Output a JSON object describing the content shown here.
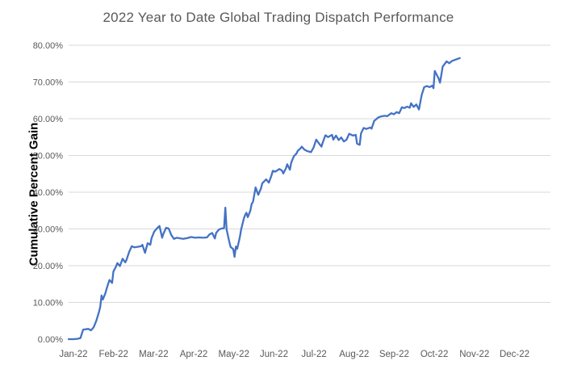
{
  "chart": {
    "title": "2022 Year to Date Global Trading Dispatch Performance",
    "y_axis_title": "Cumulative Percent Gain"
  },
  "chart_data": {
    "type": "line",
    "title": "2022 Year to Date Global Trading Dispatch Performance",
    "xlabel": "",
    "ylabel": "Cumulative Percent Gain",
    "x_unit": "day_of_year_2022",
    "x_tick_labels": [
      "Jan-22",
      "Feb-22",
      "Mar-22",
      "Apr-22",
      "May-22",
      "Jun-22",
      "Jul-22",
      "Aug-22",
      "Sep-22",
      "Oct-22",
      "Nov-22",
      "Dec-22"
    ],
    "y_ticks": [
      0,
      10,
      20,
      30,
      40,
      50,
      60,
      70,
      80
    ],
    "y_tick_labels": [
      "0.00%",
      "10.00%",
      "20.00%",
      "30.00%",
      "40.00%",
      "50.00%",
      "60.00%",
      "70.00%",
      "80.00%"
    ],
    "ylim": [
      0,
      80
    ],
    "grid": true,
    "legend": "none",
    "grid_color": "#D9D9D9",
    "line_color": "#4472C4",
    "series": [
      {
        "name": "Cumulative Percent Gain",
        "points": [
          [
            1,
            0
          ],
          [
            5,
            0
          ],
          [
            8,
            0.1
          ],
          [
            10,
            0.3
          ],
          [
            12,
            2.6
          ],
          [
            14,
            2.7
          ],
          [
            16,
            2.8
          ],
          [
            18,
            2.4
          ],
          [
            20,
            3.2
          ],
          [
            22,
            5.0
          ],
          [
            24,
            7.3
          ],
          [
            25,
            8.8
          ],
          [
            26,
            11.9
          ],
          [
            27,
            10.8
          ],
          [
            29,
            12.6
          ],
          [
            30,
            13.9
          ],
          [
            32,
            16.1
          ],
          [
            34,
            15.3
          ],
          [
            35,
            18.4
          ],
          [
            37,
            19.8
          ],
          [
            38,
            20.7
          ],
          [
            40,
            19.9
          ],
          [
            42,
            21.9
          ],
          [
            44,
            20.9
          ],
          [
            45,
            21.6
          ],
          [
            47,
            23.8
          ],
          [
            49,
            25.3
          ],
          [
            51,
            25.0
          ],
          [
            53,
            25.1
          ],
          [
            56,
            25.3
          ],
          [
            57,
            25.7
          ],
          [
            59,
            23.5
          ],
          [
            61,
            26.1
          ],
          [
            63,
            25.7
          ],
          [
            64,
            27.5
          ],
          [
            66,
            29.3
          ],
          [
            68,
            30.1
          ],
          [
            70,
            30.8
          ],
          [
            72,
            27.6
          ],
          [
            73,
            28.7
          ],
          [
            75,
            30.3
          ],
          [
            77,
            30.1
          ],
          [
            79,
            28.3
          ],
          [
            81,
            27.3
          ],
          [
            83,
            27.6
          ],
          [
            86,
            27.4
          ],
          [
            88,
            27.3
          ],
          [
            91,
            27.5
          ],
          [
            94,
            27.8
          ],
          [
            97,
            27.6
          ],
          [
            100,
            27.7
          ],
          [
            103,
            27.6
          ],
          [
            106,
            27.7
          ],
          [
            108,
            28.5
          ],
          [
            110,
            28.9
          ],
          [
            112,
            27.4
          ],
          [
            113,
            28.9
          ],
          [
            115,
            29.8
          ],
          [
            117,
            30.1
          ],
          [
            119,
            30.2
          ],
          [
            120,
            35.8
          ],
          [
            121,
            29.8
          ],
          [
            123,
            26.5
          ],
          [
            124,
            25.1
          ],
          [
            126,
            24.5
          ],
          [
            127,
            22.4
          ],
          [
            128,
            25.2
          ],
          [
            129,
            24.6
          ],
          [
            131,
            27.8
          ],
          [
            132,
            29.9
          ],
          [
            134,
            32.8
          ],
          [
            135,
            33.8
          ],
          [
            136,
            34.4
          ],
          [
            137,
            33.2
          ],
          [
            139,
            35.0
          ],
          [
            140,
            36.8
          ],
          [
            141,
            37.4
          ],
          [
            143,
            41.3
          ],
          [
            145,
            39.3
          ],
          [
            147,
            41.0
          ],
          [
            148,
            42.4
          ],
          [
            151,
            43.5
          ],
          [
            153,
            42.6
          ],
          [
            155,
            44.5
          ],
          [
            156,
            45.8
          ],
          [
            158,
            45.6
          ],
          [
            161,
            46.3
          ],
          [
            163,
            45.9
          ],
          [
            164,
            45.1
          ],
          [
            166,
            46.5
          ],
          [
            167,
            47.6
          ],
          [
            169,
            46.1
          ],
          [
            170,
            48.0
          ],
          [
            172,
            49.8
          ],
          [
            174,
            50.5
          ],
          [
            175,
            51.3
          ],
          [
            177,
            51.9
          ],
          [
            178,
            52.4
          ],
          [
            180,
            51.6
          ],
          [
            182,
            51.2
          ],
          [
            185,
            50.9
          ],
          [
            187,
            52.2
          ],
          [
            189,
            54.3
          ],
          [
            191,
            53.3
          ],
          [
            193,
            52.4
          ],
          [
            194,
            53.6
          ],
          [
            196,
            55.5
          ],
          [
            198,
            55.0
          ],
          [
            201,
            55.6
          ],
          [
            202,
            54.3
          ],
          [
            204,
            55.4
          ],
          [
            206,
            54.2
          ],
          [
            208,
            54.9
          ],
          [
            210,
            53.8
          ],
          [
            212,
            54.3
          ],
          [
            214,
            55.9
          ],
          [
            217,
            55.4
          ],
          [
            219,
            55.6
          ],
          [
            220,
            53.2
          ],
          [
            222,
            52.9
          ],
          [
            223,
            56.0
          ],
          [
            225,
            57.5
          ],
          [
            227,
            57.2
          ],
          [
            230,
            57.6
          ],
          [
            231,
            57.3
          ],
          [
            233,
            59.4
          ],
          [
            236,
            60.3
          ],
          [
            238,
            60.6
          ],
          [
            241,
            60.8
          ],
          [
            243,
            60.7
          ],
          [
            246,
            61.5
          ],
          [
            248,
            61.2
          ],
          [
            250,
            61.8
          ],
          [
            252,
            61.5
          ],
          [
            254,
            63.1
          ],
          [
            256,
            62.9
          ],
          [
            258,
            63.3
          ],
          [
            260,
            63.0
          ],
          [
            261,
            64.2
          ],
          [
            263,
            63.2
          ],
          [
            265,
            63.9
          ],
          [
            267,
            62.5
          ],
          [
            269,
            66.4
          ],
          [
            271,
            68.6
          ],
          [
            273,
            68.9
          ],
          [
            275,
            68.6
          ],
          [
            277,
            69.0
          ],
          [
            278,
            68.3
          ],
          [
            279,
            73.0
          ],
          [
            282,
            70.9
          ],
          [
            283,
            69.8
          ],
          [
            285,
            74.2
          ],
          [
            288,
            75.6
          ],
          [
            290,
            75.1
          ],
          [
            292,
            75.7
          ],
          [
            295,
            76.1
          ],
          [
            298,
            76.5
          ]
        ]
      }
    ]
  }
}
